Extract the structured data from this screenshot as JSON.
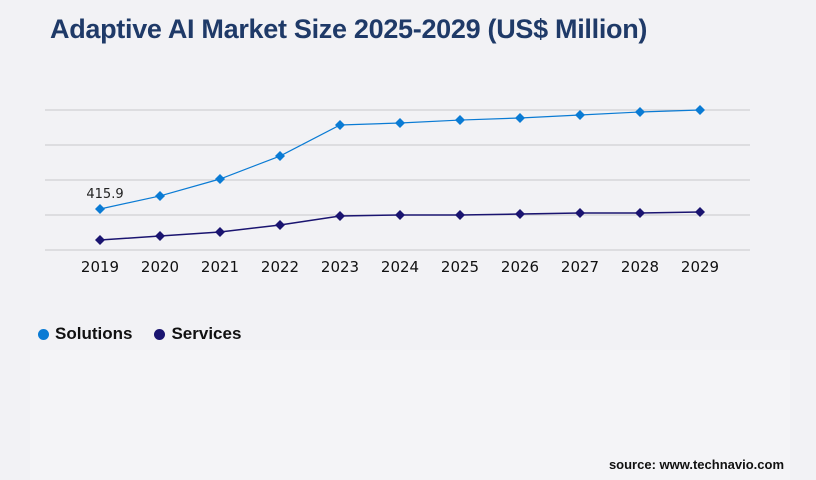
{
  "chart_data": {
    "type": "line",
    "title": "Adaptive AI Market Size 2025-2029 (US$ Million)",
    "categories": [
      "2019",
      "2020",
      "2021",
      "2022",
      "2023",
      "2024",
      "2025",
      "2026",
      "2027",
      "2028",
      "2029"
    ],
    "series": [
      {
        "name": "Solutions",
        "color": "#0a7bd4",
        "values": [
          415.9,
          548,
          720,
          953,
          1268,
          1288,
          1318,
          1339,
          1369,
          1400,
          1420
        ]
      },
      {
        "name": "Services",
        "color": "#1a1470",
        "values": [
          101,
          142,
          183,
          254,
          345,
          355,
          355,
          365,
          375,
          375,
          385
        ]
      }
    ],
    "data_labels": [
      {
        "series": "Solutions",
        "category": "2019",
        "text": "415.9"
      }
    ],
    "ylim": [
      0,
      1420
    ],
    "gridlines": 5,
    "grid": true,
    "y_axis_labels": false,
    "legend_placement": "bottom-left"
  },
  "source": "source: www.technavio.com"
}
